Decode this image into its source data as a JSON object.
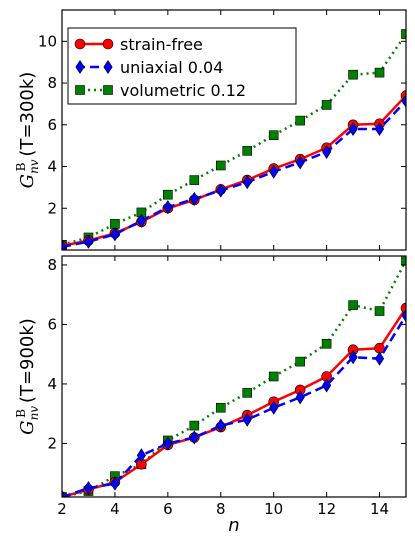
{
  "chart_data": [
    {
      "type": "line",
      "ylabel": "G_nv^B (T=300k)",
      "xlabel": "",
      "xlim": [
        2,
        15
      ],
      "ylim": [
        0,
        11.5
      ],
      "xticks": [
        2,
        4,
        6,
        8,
        10,
        12,
        14
      ],
      "yticks": [
        2,
        4,
        6,
        8,
        10
      ],
      "grid": false,
      "legend": "top-left",
      "x": [
        2,
        3,
        4,
        5,
        6,
        7,
        8,
        9,
        10,
        11,
        12,
        13,
        14,
        15
      ],
      "series": [
        {
          "name": "strain-free",
          "color": "#ff0000",
          "marker": "circle",
          "style": "solid",
          "values": [
            0.2,
            0.45,
            0.8,
            1.35,
            2.0,
            2.4,
            2.9,
            3.35,
            3.9,
            4.35,
            4.9,
            6.0,
            6.05,
            7.4
          ]
        },
        {
          "name": "uniaxial 0.04",
          "color": "#0000ff",
          "marker": "diamond",
          "style": "dashed",
          "values": [
            0.15,
            0.4,
            0.75,
            1.4,
            2.05,
            2.45,
            2.85,
            3.25,
            3.75,
            4.2,
            4.7,
            5.8,
            5.8,
            7.15
          ]
        },
        {
          "name": "volumetric 0.12",
          "color": "#008000",
          "marker": "square",
          "style": "dotted",
          "values": [
            0.25,
            0.6,
            1.25,
            1.8,
            2.65,
            3.35,
            4.05,
            4.75,
            5.5,
            6.2,
            6.95,
            8.4,
            8.5,
            10.35
          ]
        }
      ]
    },
    {
      "type": "line",
      "ylabel": "G_nv^B (T=900k)",
      "xlabel": "n",
      "xlim": [
        2,
        15
      ],
      "ylim": [
        0.2,
        8.3
      ],
      "xticks": [
        2,
        4,
        6,
        8,
        10,
        12,
        14
      ],
      "yticks": [
        2,
        4,
        6,
        8
      ],
      "grid": false,
      "legend": "none",
      "x": [
        2,
        3,
        4,
        5,
        6,
        7,
        8,
        9,
        10,
        11,
        12,
        13,
        14,
        15
      ],
      "series": [
        {
          "name": "strain-free",
          "color": "#ff0000",
          "marker": "circle",
          "style": "solid",
          "values": [
            0.2,
            0.45,
            0.7,
            1.3,
            1.95,
            2.2,
            2.55,
            2.95,
            3.4,
            3.8,
            4.25,
            5.15,
            5.2,
            6.55
          ]
        },
        {
          "name": "uniaxial 0.04",
          "color": "#0000ff",
          "marker": "diamond",
          "style": "dashed",
          "values": [
            0.2,
            0.5,
            0.65,
            1.6,
            2.0,
            2.2,
            2.6,
            2.8,
            3.2,
            3.55,
            3.95,
            4.9,
            4.85,
            6.3
          ]
        },
        {
          "name": "volumetric 0.12",
          "color": "#008000",
          "marker": "square",
          "style": "dotted",
          "values": [
            0.2,
            0.4,
            0.9,
            1.3,
            2.1,
            2.6,
            3.2,
            3.7,
            4.25,
            4.75,
            5.35,
            6.65,
            6.45,
            8.15
          ]
        }
      ]
    }
  ]
}
